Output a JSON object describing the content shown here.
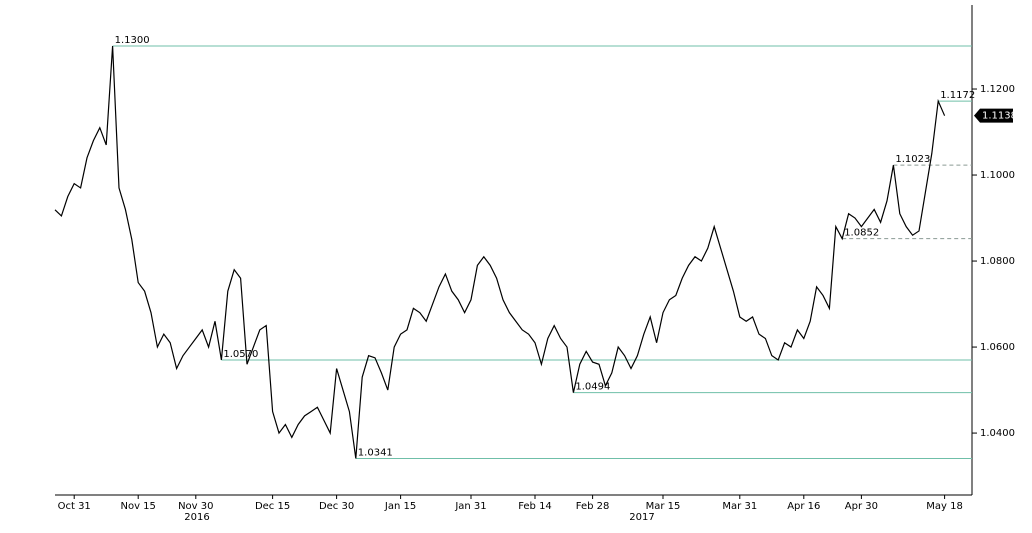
{
  "chart_data": {
    "type": "line",
    "color": "#000000",
    "level_color": "#6fbfa8",
    "categories": [
      null,
      null,
      null,
      "Oct 31",
      null,
      null,
      null,
      null,
      null,
      null,
      null,
      null,
      null,
      "Nov 15",
      null,
      null,
      null,
      null,
      null,
      null,
      null,
      null,
      "Nov 30",
      null,
      null,
      null,
      null,
      null,
      null,
      null,
      null,
      null,
      null,
      null,
      "Dec 15",
      null,
      null,
      null,
      null,
      null,
      null,
      null,
      null,
      null,
      "Dec 30",
      null,
      null,
      null,
      null,
      null,
      null,
      null,
      null,
      null,
      "Jan 15",
      null,
      null,
      null,
      null,
      null,
      null,
      null,
      null,
      null,
      null,
      "Jan 31",
      null,
      null,
      null,
      null,
      null,
      null,
      null,
      null,
      null,
      "Feb 14",
      null,
      null,
      null,
      null,
      null,
      null,
      null,
      null,
      "Feb 28",
      null,
      null,
      null,
      null,
      null,
      null,
      null,
      null,
      null,
      null,
      "Mar 15",
      null,
      null,
      null,
      null,
      null,
      null,
      null,
      null,
      null,
      null,
      null,
      "Mar 31",
      null,
      null,
      null,
      null,
      null,
      null,
      null,
      null,
      null,
      "Apr 16",
      null,
      null,
      null,
      null,
      null,
      null,
      null,
      null,
      "Apr 30",
      null,
      null,
      null,
      null,
      null,
      null,
      null,
      null,
      null,
      null,
      null,
      null,
      "May 18"
    ],
    "values": [
      1.0919,
      1.0905,
      1.095,
      1.098,
      1.097,
      1.104,
      1.108,
      1.111,
      1.107,
      1.13,
      1.097,
      1.092,
      1.085,
      1.075,
      1.073,
      1.068,
      1.06,
      1.063,
      1.061,
      1.055,
      1.058,
      1.06,
      1.062,
      1.064,
      1.06,
      1.066,
      1.057,
      1.073,
      1.078,
      1.076,
      1.056,
      1.06,
      1.064,
      1.065,
      1.045,
      1.04,
      1.042,
      1.039,
      1.042,
      1.044,
      1.045,
      1.046,
      1.043,
      1.04,
      1.055,
      1.05,
      1.045,
      1.0341,
      1.053,
      1.058,
      1.0575,
      1.054,
      1.05,
      1.06,
      1.063,
      1.064,
      1.069,
      1.068,
      1.066,
      1.07,
      1.074,
      1.077,
      1.073,
      1.071,
      1.068,
      1.071,
      1.079,
      1.081,
      1.079,
      1.076,
      1.071,
      1.068,
      1.066,
      1.064,
      1.063,
      1.061,
      1.056,
      1.062,
      1.065,
      1.062,
      1.06,
      1.0494,
      1.056,
      1.059,
      1.0565,
      1.056,
      1.051,
      1.054,
      1.06,
      1.058,
      1.055,
      1.058,
      1.063,
      1.067,
      1.061,
      1.068,
      1.071,
      1.072,
      1.076,
      1.079,
      1.081,
      1.08,
      1.083,
      1.088,
      1.083,
      1.078,
      1.073,
      1.067,
      1.066,
      1.067,
      1.063,
      1.062,
      1.058,
      1.057,
      1.061,
      1.06,
      1.064,
      1.062,
      1.066,
      1.074,
      1.072,
      1.069,
      1.088,
      1.0852,
      1.091,
      1.09,
      1.088,
      1.09,
      1.092,
      1.089,
      1.094,
      1.1023,
      1.091,
      1.088,
      1.086,
      1.087,
      1.096,
      1.105,
      1.1172,
      1.1138
    ],
    "years": [
      "2016",
      "2017"
    ],
    "ylim": [
      1.0256,
      1.1407
    ],
    "yticks": [
      {
        "value": 1.04,
        "label": "1.0400"
      },
      {
        "value": 1.06,
        "label": "1.0600"
      },
      {
        "value": 1.08,
        "label": "1.0800"
      },
      {
        "value": 1.1,
        "label": "1.1000"
      },
      {
        "value": 1.12,
        "label": "1.1200"
      }
    ],
    "levels": [
      {
        "value": 1.13,
        "label": "1.1300",
        "style": "solid"
      },
      {
        "value": 1.1172,
        "label": "1.1172",
        "style": "solid"
      },
      {
        "value": 1.1023,
        "label": "1.1023",
        "style": "dashed"
      },
      {
        "value": 1.0852,
        "label": "1.0852",
        "style": "dashed"
      },
      {
        "value": 1.057,
        "label": "1.0570",
        "style": "solid"
      },
      {
        "value": 1.0494,
        "label": "1.0494",
        "style": "solid"
      },
      {
        "value": 1.0341,
        "label": "1.0341",
        "style": "solid"
      }
    ]
  }
}
